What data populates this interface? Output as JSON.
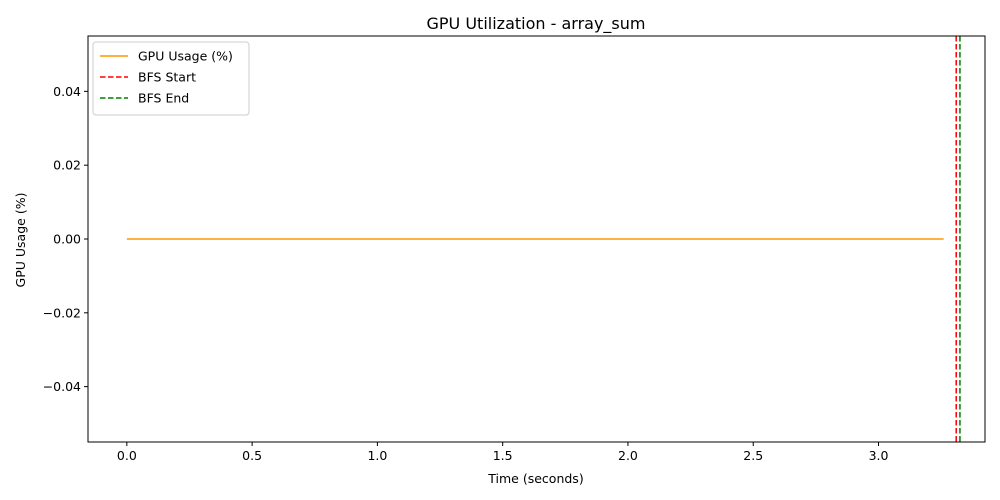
{
  "chart_data": {
    "type": "line",
    "title": "GPU Utilization - array_sum",
    "xlabel": "Time (seconds)",
    "ylabel": "GPU Usage (%)",
    "xlim": [
      -0.155,
      3.425
    ],
    "ylim": [
      -0.055,
      0.055
    ],
    "xticks": [
      0.0,
      0.5,
      1.0,
      1.5,
      2.0,
      2.5,
      3.0
    ],
    "xtick_labels": [
      "0.0",
      "0.5",
      "1.0",
      "1.5",
      "2.0",
      "2.5",
      "3.0"
    ],
    "yticks": [
      -0.04,
      -0.02,
      0.0,
      0.02,
      0.04
    ],
    "ytick_labels": [
      "−0.04",
      "−0.02",
      "0.00",
      "0.02",
      "0.04"
    ],
    "grid": false,
    "legend_position": "top-left",
    "series": [
      {
        "name": "GPU Usage (%)",
        "color": "#ff9900",
        "style": "solid",
        "x": [
          0.0,
          3.26
        ],
        "y": [
          0.0,
          0.0
        ]
      }
    ],
    "vlines": [
      {
        "name": "BFS Start",
        "x": 3.31,
        "color": "#ff0000",
        "style": "dashed"
      },
      {
        "name": "BFS End",
        "x": 3.325,
        "color": "#008000",
        "style": "dashed"
      }
    ]
  }
}
